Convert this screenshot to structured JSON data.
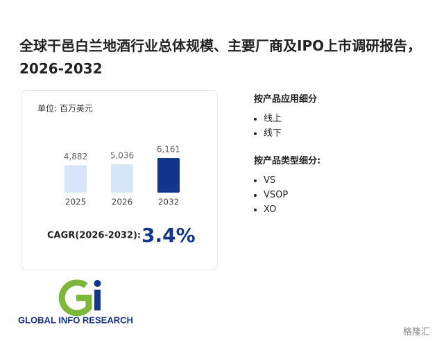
{
  "title": "全球干邑白兰地酒行业总体规模、主要厂商及IPO上市调研报告，2026-2032",
  "chart_data": {
    "type": "bar",
    "subtitle": "单位: 百万美元",
    "categories": [
      "2025",
      "2026",
      "2032"
    ],
    "values": [
      4882,
      5036,
      6161
    ],
    "value_labels": [
      "4,882",
      "5,036",
      "6,161"
    ],
    "colors": [
      "#d5e6f9",
      "#d5e6f9",
      "#14358c"
    ]
  },
  "cagr": {
    "label": "CAGR(2026-2032):",
    "value": "3.4%"
  },
  "segments": [
    {
      "title": "按产品应用细分",
      "items": [
        "线上",
        "线下"
      ]
    },
    {
      "title": "按产品类型细分:",
      "items": [
        "VS",
        "VSOP",
        "XO"
      ]
    }
  ],
  "logo_text": "GLOBAL INFO RESEARCH",
  "brand": "格隆汇"
}
